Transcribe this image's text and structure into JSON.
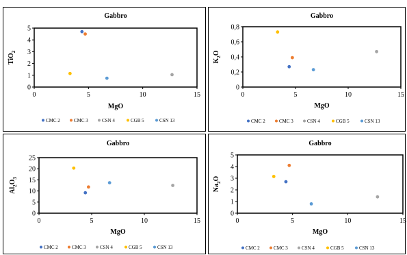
{
  "colors": {
    "CMC 2": "#4472C4",
    "CMC 3": "#ED7D31",
    "CSN 4": "#A5A5A5",
    "CGB 5": "#FFC000",
    "CSN 13": "#5B9BD5"
  },
  "chart_data": [
    {
      "type": "scatter",
      "title": "Gabbro",
      "xlabel": "MgO",
      "ylabel": "TiO2",
      "ylabel_main": "TiO",
      "ylabel_sub": "2",
      "xlim": [
        0,
        15
      ],
      "ylim": [
        0,
        5
      ],
      "xticks": [
        "0",
        "5",
        "10",
        "15"
      ],
      "yticks": [
        "0",
        "1",
        "2",
        "3",
        "4",
        "5"
      ],
      "series": [
        {
          "name": "CMC 2",
          "x": 4.4,
          "y": 4.7
        },
        {
          "name": "CMC 3",
          "x": 4.7,
          "y": 4.5
        },
        {
          "name": "CSN 4",
          "x": 12.7,
          "y": 1.05
        },
        {
          "name": "CGB 5",
          "x": 3.3,
          "y": 1.15
        },
        {
          "name": "CSN 13",
          "x": 6.7,
          "y": 0.75
        }
      ],
      "legend": [
        "CMC 2",
        "CMC 3",
        "CSN 4",
        "CGB 5",
        "CSN 13"
      ],
      "legend_position": "bottom"
    },
    {
      "type": "scatter",
      "title": "Gabbro",
      "xlabel": "MgO",
      "ylabel": "K2O",
      "ylabel_main": "K",
      "ylabel_sub": "2",
      "ylabel_after": "O",
      "xlim": [
        0,
        15
      ],
      "ylim": [
        0,
        0.8
      ],
      "xticks": [
        "0",
        "5",
        "10",
        "15"
      ],
      "yticks": [
        "0",
        "0,2",
        "0,4",
        "0,6",
        "0,8"
      ],
      "series": [
        {
          "name": "CMC 2",
          "x": 4.4,
          "y": 0.27
        },
        {
          "name": "CMC 3",
          "x": 4.7,
          "y": 0.39
        },
        {
          "name": "CSN 4",
          "x": 12.7,
          "y": 0.47
        },
        {
          "name": "CGB 5",
          "x": 3.3,
          "y": 0.73
        },
        {
          "name": "CSN 13",
          "x": 6.7,
          "y": 0.23
        }
      ],
      "legend": [
        "CMC 2",
        "CMC 3",
        "CSN 4",
        "CGB 5",
        "CSN 13"
      ],
      "legend_position": "bottom"
    },
    {
      "type": "scatter",
      "title": "Gabbro",
      "xlabel": "MgO",
      "ylabel": "Al2O3",
      "ylabel_main": "Al",
      "ylabel_sub": "2",
      "ylabel_after": "O",
      "ylabel_sub2": "3",
      "xlim": [
        0,
        15
      ],
      "ylim": [
        0,
        25
      ],
      "xticks": [
        "0",
        "5",
        "10",
        "15"
      ],
      "yticks": [
        "0",
        "5",
        "10",
        "15",
        "20",
        "25"
      ],
      "series": [
        {
          "name": "CMC 2",
          "x": 4.4,
          "y": 9.2
        },
        {
          "name": "CMC 3",
          "x": 4.7,
          "y": 11.8
        },
        {
          "name": "CSN 4",
          "x": 12.7,
          "y": 12.5
        },
        {
          "name": "CGB 5",
          "x": 3.3,
          "y": 20.3
        },
        {
          "name": "CSN 13",
          "x": 6.7,
          "y": 13.7
        }
      ],
      "legend": [
        "CMC 2",
        "CMC 3",
        "CSN 4",
        "CGB 5",
        "CSN 13"
      ],
      "legend_position": "bottom"
    },
    {
      "type": "scatter",
      "title": "Gabbro",
      "xlabel": "MgO",
      "ylabel": "Na2O",
      "ylabel_main": "Na",
      "ylabel_sub": "2",
      "ylabel_after": "O",
      "xlim": [
        0,
        15
      ],
      "ylim": [
        0,
        5
      ],
      "xticks": [
        "0",
        "5",
        "10",
        "15"
      ],
      "yticks": [
        "0",
        "1",
        "2",
        "3",
        "4",
        "5"
      ],
      "series": [
        {
          "name": "CMC 2",
          "x": 4.4,
          "y": 2.7
        },
        {
          "name": "CMC 3",
          "x": 4.7,
          "y": 4.1
        },
        {
          "name": "CSN 4",
          "x": 12.7,
          "y": 1.4
        },
        {
          "name": "CGB 5",
          "x": 3.3,
          "y": 3.15
        },
        {
          "name": "CSN 13",
          "x": 6.7,
          "y": 0.8
        }
      ],
      "legend": [
        "CMC 2",
        "CMC 3",
        "CSN 4",
        "CGB 5",
        "CSN 13"
      ],
      "legend_position": "bottom"
    }
  ]
}
